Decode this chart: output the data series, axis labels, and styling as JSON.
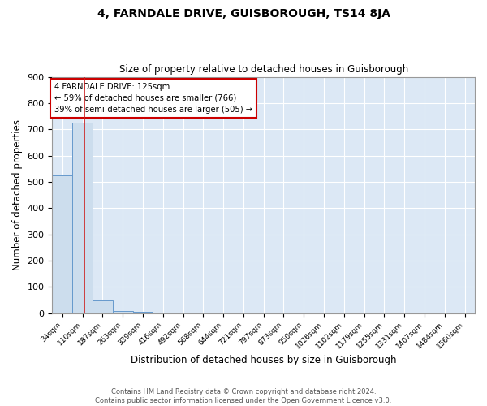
{
  "title": "4, FARNDALE DRIVE, GUISBOROUGH, TS14 8JA",
  "subtitle": "Size of property relative to detached houses in Guisborough",
  "xlabel": "Distribution of detached houses by size in Guisborough",
  "ylabel": "Number of detached properties",
  "footer_line1": "Contains HM Land Registry data © Crown copyright and database right 2024.",
  "footer_line2": "Contains public sector information licensed under the Open Government Licence v3.0.",
  "bin_labels": [
    "34sqm",
    "110sqm",
    "187sqm",
    "263sqm",
    "339sqm",
    "416sqm",
    "492sqm",
    "568sqm",
    "644sqm",
    "721sqm",
    "797sqm",
    "873sqm",
    "950sqm",
    "1026sqm",
    "1102sqm",
    "1179sqm",
    "1255sqm",
    "1331sqm",
    "1407sqm",
    "1484sqm",
    "1560sqm"
  ],
  "bar_heights": [
    524,
    726,
    49,
    8,
    6,
    0,
    0,
    0,
    0,
    0,
    0,
    0,
    0,
    0,
    0,
    0,
    0,
    0,
    0,
    0,
    0
  ],
  "bar_color": "#ccdded",
  "bar_edge_color": "#6699cc",
  "background_color": "#dce8f5",
  "grid_color": "#ffffff",
  "red_line_x": 1.08,
  "annotation_text": "4 FARNDALE DRIVE: 125sqm\n← 59% of detached houses are smaller (766)\n39% of semi-detached houses are larger (505) →",
  "annotation_box_color": "#ffffff",
  "annotation_box_edge": "#cc0000",
  "ylim": [
    0,
    900
  ],
  "yticks": [
    0,
    100,
    200,
    300,
    400,
    500,
    600,
    700,
    800,
    900
  ],
  "figsize": [
    6.0,
    5.0
  ],
  "dpi": 100
}
